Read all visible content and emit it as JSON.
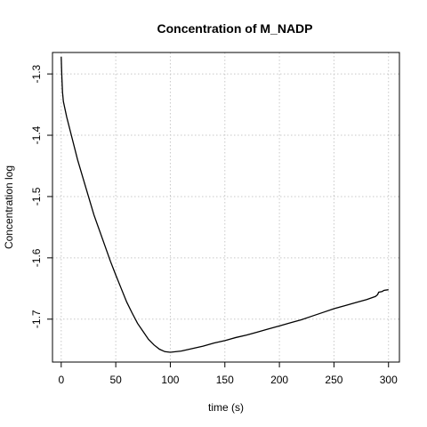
{
  "chart_data": {
    "type": "line",
    "title": "Concentration of M_NADP",
    "xlabel": "time (s)",
    "ylabel": "Concentration log",
    "xlim": [
      -8,
      310
    ],
    "ylim": [
      -1.77,
      -1.265
    ],
    "x_ticks": [
      0,
      50,
      100,
      150,
      200,
      250,
      300
    ],
    "y_ticks": [
      -1.3,
      -1.4,
      -1.5,
      -1.6,
      -1.7
    ],
    "grid": true,
    "line_color": "#000000",
    "grid_color": "#c8c8c8",
    "series": [
      {
        "points": [
          [
            0,
            -1.272
          ],
          [
            0.3,
            -1.29
          ],
          [
            0.7,
            -1.31
          ],
          [
            1.2,
            -1.33
          ],
          [
            2,
            -1.345
          ],
          [
            5,
            -1.37
          ],
          [
            10,
            -1.405
          ],
          [
            15,
            -1.44
          ],
          [
            20,
            -1.47
          ],
          [
            25,
            -1.5
          ],
          [
            30,
            -1.53
          ],
          [
            35,
            -1.555
          ],
          [
            40,
            -1.58
          ],
          [
            45,
            -1.605
          ],
          [
            50,
            -1.628
          ],
          [
            55,
            -1.65
          ],
          [
            60,
            -1.672
          ],
          [
            65,
            -1.69
          ],
          [
            70,
            -1.707
          ],
          [
            75,
            -1.72
          ],
          [
            80,
            -1.733
          ],
          [
            85,
            -1.742
          ],
          [
            90,
            -1.749
          ],
          [
            95,
            -1.753
          ],
          [
            100,
            -1.754
          ],
          [
            110,
            -1.752
          ],
          [
            120,
            -1.748
          ],
          [
            130,
            -1.744
          ],
          [
            140,
            -1.739
          ],
          [
            150,
            -1.735
          ],
          [
            160,
            -1.73
          ],
          [
            170,
            -1.726
          ],
          [
            180,
            -1.721
          ],
          [
            190,
            -1.716
          ],
          [
            200,
            -1.711
          ],
          [
            210,
            -1.706
          ],
          [
            220,
            -1.701
          ],
          [
            230,
            -1.695
          ],
          [
            240,
            -1.689
          ],
          [
            250,
            -1.683
          ],
          [
            260,
            -1.678
          ],
          [
            270,
            -1.673
          ],
          [
            280,
            -1.668
          ],
          [
            288,
            -1.663
          ],
          [
            290,
            -1.66
          ],
          [
            291,
            -1.656
          ],
          [
            294,
            -1.655
          ],
          [
            296,
            -1.653
          ],
          [
            300,
            -1.652
          ]
        ]
      }
    ]
  }
}
